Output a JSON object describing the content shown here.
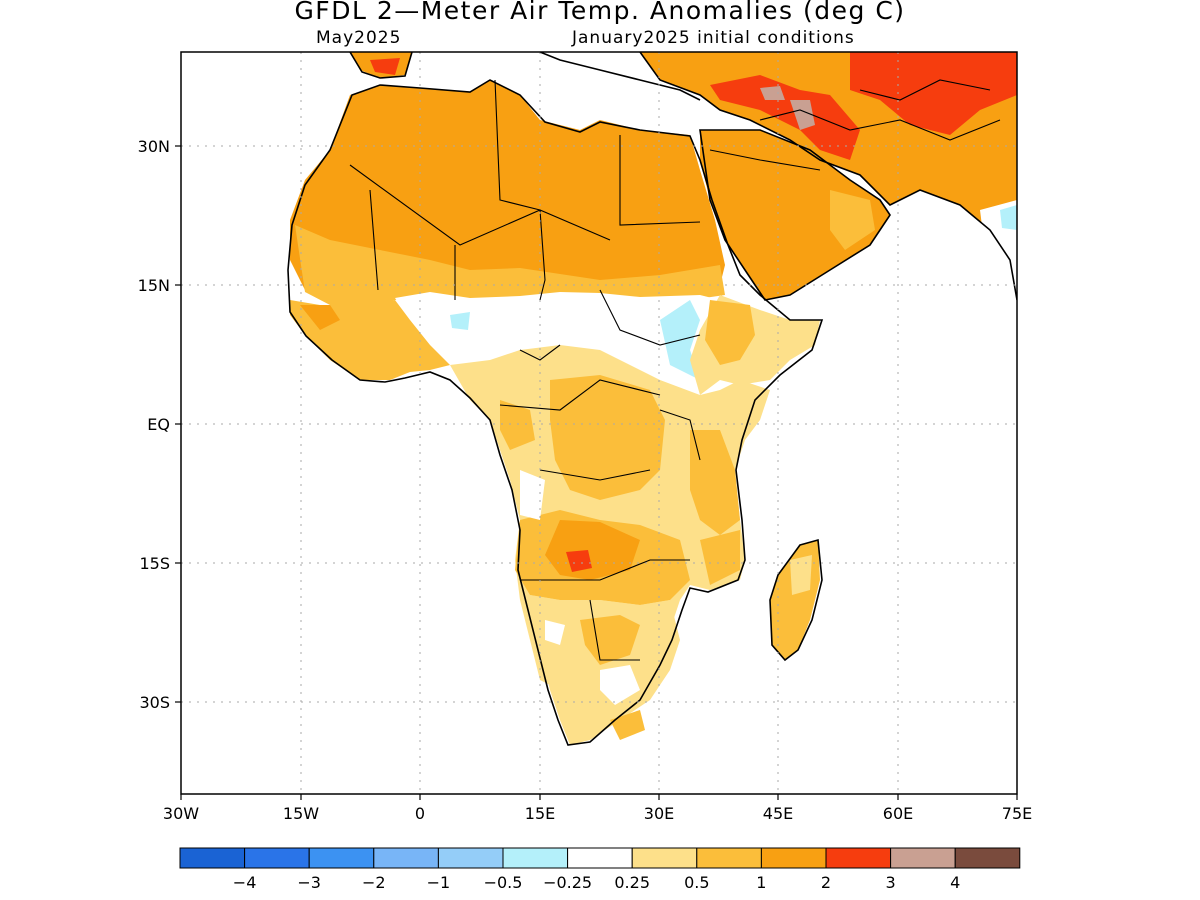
{
  "title": "GFDL 2—Meter Air Temp. Anomalies (deg C)",
  "valid_month": "May2025",
  "init": "January2025 initial conditions",
  "lat_labels": [
    "30N",
    "15N",
    "EQ",
    "15S",
    "30S"
  ],
  "lon_labels": [
    "30W",
    "15W",
    "0",
    "15E",
    "30E",
    "45E",
    "60E",
    "75E"
  ],
  "colorbar": {
    "colors": [
      "#1a63d4",
      "#2a74e8",
      "#3c92f2",
      "#78b5f7",
      "#94cdf8",
      "#b4f0fa",
      "#ffffff",
      "#fde08a",
      "#fbbe3a",
      "#f8a012",
      "#f63d0e",
      "#c9a092",
      "#7a4b3d"
    ],
    "labels": [
      "−4",
      "−3",
      "−2",
      "−1",
      "−0.5",
      "−0.25",
      "0.25",
      "0.5",
      "1",
      "2",
      "3",
      "4"
    ]
  },
  "legend_units": "deg C"
}
